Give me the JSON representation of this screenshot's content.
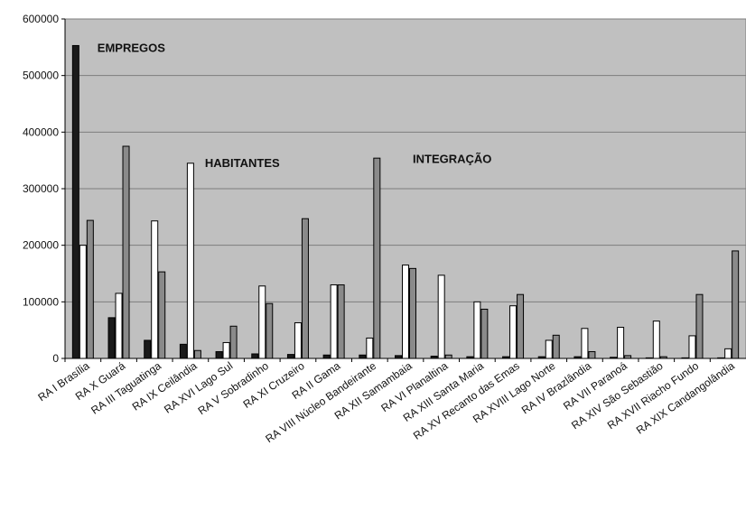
{
  "chart_data": {
    "type": "bar",
    "categories": [
      "RA I Brasília",
      "RA X Guará",
      "RA III Taguatinga",
      "RA IX Ceilândia",
      "RA XVI Lago Sul",
      "RA V Sobradinho",
      "RA XI Cruzeiro",
      "RA II Gama",
      "RA VIII Núcleo Bandeirante",
      "RA XII Samambaia",
      "RA VI Planaltina",
      "RA XIII Santa Maria",
      "RA XV Recanto das Emas",
      "RA XVIII Lago Norte",
      "RA IV Brazlândia",
      "RA VII Paranoá",
      "RA XIV São Sebastião",
      "RA XVII Riacho Fundo",
      "RA XIX Candangolândia"
    ],
    "series": [
      {
        "name": "EMPREGOS",
        "color": "#1a1a1a",
        "values": [
          553000,
          72000,
          32000,
          25000,
          12000,
          8000,
          7000,
          6000,
          6000,
          5000,
          4000,
          3000,
          3000,
          3000,
          3000,
          2000,
          1000,
          1000,
          1000
        ]
      },
      {
        "name": "HABITANTES",
        "color": "#ffffff",
        "values": [
          200000,
          115000,
          243000,
          345000,
          28000,
          128000,
          63000,
          130000,
          36000,
          165000,
          147000,
          100000,
          93000,
          32000,
          53000,
          55000,
          66000,
          40000,
          17000
        ]
      },
      {
        "name": "INTEGRAÇÃO",
        "color": "#8a8a8a",
        "values": [
          244000,
          375000,
          153000,
          14000,
          57000,
          97000,
          247000,
          130000,
          354000,
          159000,
          6000,
          87000,
          113000,
          41000,
          12000,
          5000,
          3000,
          113000,
          190000
        ]
      }
    ],
    "yticks": [
      "0",
      "100000",
      "200000",
      "300000",
      "400000",
      "500000",
      "600000"
    ],
    "ylim": [
      0,
      600000
    ],
    "grid": true,
    "legend": "none",
    "annotations": [
      {
        "text": "EMPREGOS",
        "x": 0.6,
        "y": 548000
      },
      {
        "text": "HABITANTES",
        "x": 3.6,
        "y": 345000
      },
      {
        "text": "INTEGRAÇÃO",
        "x": 9.4,
        "y": 352000
      }
    ],
    "plot_background": "#c0c0c0"
  }
}
